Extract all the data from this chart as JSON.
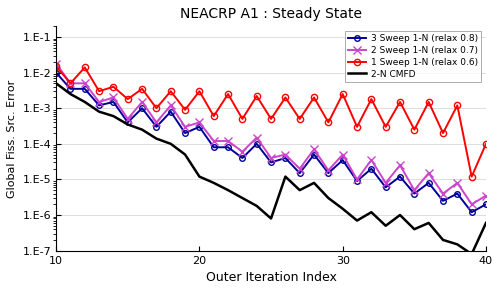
{
  "title": "NEACRP A1 : Steady State",
  "xlabel": "Outer Iteration Index",
  "ylabel": "Global Fiss. Src. Error",
  "xlim": [
    10,
    40
  ],
  "xticks": [
    10,
    20,
    30,
    40
  ],
  "series": {
    "2N": {
      "label": "2-N CMFD",
      "color": "#000000",
      "marker": null,
      "linestyle": "-",
      "linewidth": 1.8,
      "x": [
        10,
        11,
        12,
        13,
        14,
        15,
        16,
        17,
        18,
        19,
        20,
        21,
        22,
        23,
        24,
        25,
        26,
        27,
        28,
        29,
        30,
        31,
        32,
        33,
        34,
        35,
        36,
        37,
        38,
        39,
        40
      ],
      "y": [
        0.005,
        0.0025,
        0.0015,
        0.0008,
        0.0006,
        0.00035,
        0.00025,
        0.00014,
        0.0001,
        5e-05,
        1.2e-05,
        8e-06,
        5e-06,
        3e-06,
        1.8e-06,
        8e-07,
        1.2e-05,
        5e-06,
        8e-06,
        3e-06,
        1.5e-06,
        7e-07,
        1.2e-06,
        5e-07,
        1e-06,
        4e-07,
        6e-07,
        2e-07,
        1.5e-07,
        8e-08,
        6e-07
      ]
    },
    "1sweep": {
      "label": "1 Sweep 1-N (relax 0.6)",
      "color": "#ff0000",
      "marker": "o",
      "linestyle": "-",
      "linewidth": 1.4,
      "markersize": 4.5,
      "markerfacecolor": "none",
      "x": [
        10,
        11,
        12,
        13,
        14,
        15,
        16,
        17,
        18,
        19,
        20,
        21,
        22,
        23,
        24,
        25,
        26,
        27,
        28,
        29,
        30,
        31,
        32,
        33,
        34,
        35,
        36,
        37,
        38,
        39,
        40
      ],
      "y": [
        0.015,
        0.005,
        0.014,
        0.003,
        0.004,
        0.0018,
        0.0035,
        0.001,
        0.003,
        0.0009,
        0.003,
        0.0006,
        0.0025,
        0.0005,
        0.0022,
        0.0005,
        0.002,
        0.0005,
        0.002,
        0.0004,
        0.0025,
        0.0003,
        0.0018,
        0.0003,
        0.0015,
        0.00025,
        0.0015,
        0.0002,
        0.0012,
        1.2e-05,
        0.0001
      ]
    },
    "2sweep": {
      "label": "2 Sweep 1-N (relax 0.7)",
      "color": "#cc44cc",
      "marker": "x",
      "linestyle": "-",
      "linewidth": 1.4,
      "markersize": 6,
      "markerfacecolor": "#cc44cc",
      "x": [
        10,
        11,
        12,
        13,
        14,
        15,
        16,
        17,
        18,
        19,
        20,
        21,
        22,
        23,
        24,
        25,
        26,
        27,
        28,
        29,
        30,
        31,
        32,
        33,
        34,
        35,
        36,
        37,
        38,
        39,
        40
      ],
      "y": [
        0.018,
        0.005,
        0.005,
        0.0015,
        0.002,
        0.0005,
        0.0015,
        0.0004,
        0.0012,
        0.0003,
        0.0004,
        0.00012,
        0.00012,
        6e-05,
        0.00015,
        4e-05,
        5e-05,
        2e-05,
        7e-05,
        1.8e-05,
        5e-05,
        1e-05,
        3.5e-05,
        8e-06,
        2.5e-05,
        5e-06,
        1.5e-05,
        4e-06,
        8e-06,
        2e-06,
        3.5e-06
      ]
    },
    "3sweep": {
      "label": "3 Sweep 1-N (relax 0.8)",
      "color": "#000099",
      "marker": "o",
      "linestyle": "-",
      "linewidth": 1.4,
      "markersize": 4,
      "markerfacecolor": "none",
      "x": [
        10,
        11,
        12,
        13,
        14,
        15,
        16,
        17,
        18,
        19,
        20,
        21,
        22,
        23,
        24,
        25,
        26,
        27,
        28,
        29,
        30,
        31,
        32,
        33,
        34,
        35,
        36,
        37,
        38,
        39,
        40
      ],
      "y": [
        0.01,
        0.0035,
        0.0035,
        0.0012,
        0.0015,
        0.0004,
        0.001,
        0.0003,
        0.0008,
        0.0002,
        0.0003,
        8e-05,
        8e-05,
        4e-05,
        0.0001,
        3e-05,
        4e-05,
        1.5e-05,
        5e-05,
        1.5e-05,
        3.5e-05,
        9e-06,
        2e-05,
        6e-06,
        1.2e-05,
        4e-06,
        8e-06,
        2.5e-06,
        4e-06,
        1.2e-06,
        2e-06
      ]
    }
  }
}
